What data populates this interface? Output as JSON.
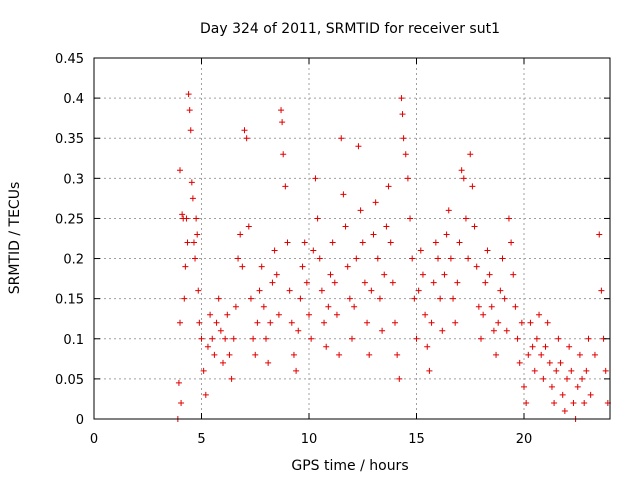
{
  "chart_data": {
    "type": "scatter",
    "title": "Day 324 of 2011, SRMTID for receiver sut1",
    "xlabel": "GPS time / hours",
    "ylabel": "SRMTID / TECUs",
    "xlim": [
      0,
      24
    ],
    "ylim": [
      0,
      0.45
    ],
    "xticks": [
      0,
      5,
      10,
      15,
      20
    ],
    "xtick_labels": [
      "0",
      "5",
      "10",
      "15",
      "20"
    ],
    "yticks": [
      0,
      0.05,
      0.1,
      0.15,
      0.2,
      0.25,
      0.3,
      0.35,
      0.4,
      0.45
    ],
    "ytick_labels": [
      "0",
      "0.05",
      "0.1",
      "0.15",
      "0.2",
      "0.25",
      "0.3",
      "0.35",
      "0.4",
      "0.45"
    ],
    "grid": true,
    "marker": "+",
    "color": "#e00000",
    "series": [
      {
        "name": "sut1",
        "points": [
          [
            3.9,
            0.0
          ],
          [
            3.95,
            0.045
          ],
          [
            4.0,
            0.12
          ],
          [
            4.0,
            0.31
          ],
          [
            4.05,
            0.02
          ],
          [
            4.1,
            0.255
          ],
          [
            4.15,
            0.25
          ],
          [
            4.2,
            0.15
          ],
          [
            4.25,
            0.19
          ],
          [
            4.3,
            0.25
          ],
          [
            4.35,
            0.22
          ],
          [
            4.4,
            0.405
          ],
          [
            4.45,
            0.385
          ],
          [
            4.5,
            0.36
          ],
          [
            4.55,
            0.295
          ],
          [
            4.6,
            0.275
          ],
          [
            4.65,
            0.22
          ],
          [
            4.7,
            0.2
          ],
          [
            4.75,
            0.25
          ],
          [
            4.8,
            0.23
          ],
          [
            4.85,
            0.16
          ],
          [
            4.9,
            0.12
          ],
          [
            5.0,
            0.1
          ],
          [
            5.1,
            0.06
          ],
          [
            5.2,
            0.03
          ],
          [
            5.3,
            0.09
          ],
          [
            5.4,
            0.13
          ],
          [
            5.5,
            0.1
          ],
          [
            5.6,
            0.08
          ],
          [
            5.7,
            0.12
          ],
          [
            5.8,
            0.15
          ],
          [
            5.9,
            0.11
          ],
          [
            6.0,
            0.07
          ],
          [
            6.1,
            0.1
          ],
          [
            6.2,
            0.13
          ],
          [
            6.3,
            0.08
          ],
          [
            6.4,
            0.05
          ],
          [
            6.5,
            0.1
          ],
          [
            6.6,
            0.14
          ],
          [
            6.7,
            0.2
          ],
          [
            6.8,
            0.23
          ],
          [
            6.9,
            0.19
          ],
          [
            7.0,
            0.36
          ],
          [
            7.1,
            0.35
          ],
          [
            7.2,
            0.24
          ],
          [
            7.3,
            0.15
          ],
          [
            7.4,
            0.1
          ],
          [
            7.5,
            0.08
          ],
          [
            7.6,
            0.12
          ],
          [
            7.7,
            0.16
          ],
          [
            7.8,
            0.19
          ],
          [
            7.9,
            0.14
          ],
          [
            8.0,
            0.1
          ],
          [
            8.1,
            0.07
          ],
          [
            8.2,
            0.12
          ],
          [
            8.3,
            0.17
          ],
          [
            8.4,
            0.21
          ],
          [
            8.5,
            0.18
          ],
          [
            8.6,
            0.13
          ],
          [
            8.7,
            0.385
          ],
          [
            8.75,
            0.37
          ],
          [
            8.8,
            0.33
          ],
          [
            8.9,
            0.29
          ],
          [
            9.0,
            0.22
          ],
          [
            9.1,
            0.16
          ],
          [
            9.2,
            0.12
          ],
          [
            9.3,
            0.08
          ],
          [
            9.4,
            0.06
          ],
          [
            9.5,
            0.11
          ],
          [
            9.6,
            0.15
          ],
          [
            9.7,
            0.19
          ],
          [
            9.8,
            0.22
          ],
          [
            9.9,
            0.17
          ],
          [
            10.0,
            0.13
          ],
          [
            10.1,
            0.1
          ],
          [
            10.2,
            0.21
          ],
          [
            10.3,
            0.3
          ],
          [
            10.4,
            0.25
          ],
          [
            10.5,
            0.2
          ],
          [
            10.6,
            0.16
          ],
          [
            10.7,
            0.12
          ],
          [
            10.8,
            0.09
          ],
          [
            10.9,
            0.14
          ],
          [
            11.0,
            0.18
          ],
          [
            11.1,
            0.22
          ],
          [
            11.2,
            0.17
          ],
          [
            11.3,
            0.13
          ],
          [
            11.4,
            0.08
          ],
          [
            11.5,
            0.35
          ],
          [
            11.6,
            0.28
          ],
          [
            11.7,
            0.24
          ],
          [
            11.8,
            0.19
          ],
          [
            11.9,
            0.15
          ],
          [
            12.0,
            0.1
          ],
          [
            12.1,
            0.14
          ],
          [
            12.2,
            0.2
          ],
          [
            12.3,
            0.34
          ],
          [
            12.4,
            0.26
          ],
          [
            12.5,
            0.22
          ],
          [
            12.6,
            0.17
          ],
          [
            12.7,
            0.12
          ],
          [
            12.8,
            0.08
          ],
          [
            12.9,
            0.16
          ],
          [
            13.0,
            0.23
          ],
          [
            13.1,
            0.27
          ],
          [
            13.2,
            0.2
          ],
          [
            13.3,
            0.15
          ],
          [
            13.4,
            0.11
          ],
          [
            13.5,
            0.18
          ],
          [
            13.6,
            0.24
          ],
          [
            13.7,
            0.29
          ],
          [
            13.8,
            0.22
          ],
          [
            13.9,
            0.17
          ],
          [
            14.0,
            0.12
          ],
          [
            14.1,
            0.08
          ],
          [
            14.2,
            0.05
          ],
          [
            14.3,
            0.4
          ],
          [
            14.35,
            0.38
          ],
          [
            14.4,
            0.35
          ],
          [
            14.5,
            0.33
          ],
          [
            14.6,
            0.3
          ],
          [
            14.7,
            0.25
          ],
          [
            14.8,
            0.2
          ],
          [
            14.9,
            0.15
          ],
          [
            15.0,
            0.1
          ],
          [
            15.1,
            0.16
          ],
          [
            15.2,
            0.21
          ],
          [
            15.3,
            0.18
          ],
          [
            15.4,
            0.13
          ],
          [
            15.5,
            0.09
          ],
          [
            15.6,
            0.06
          ],
          [
            15.7,
            0.12
          ],
          [
            15.8,
            0.17
          ],
          [
            15.9,
            0.22
          ],
          [
            16.0,
            0.2
          ],
          [
            16.1,
            0.15
          ],
          [
            16.2,
            0.11
          ],
          [
            16.3,
            0.18
          ],
          [
            16.4,
            0.23
          ],
          [
            16.5,
            0.26
          ],
          [
            16.6,
            0.2
          ],
          [
            16.7,
            0.15
          ],
          [
            16.8,
            0.12
          ],
          [
            16.9,
            0.17
          ],
          [
            17.0,
            0.22
          ],
          [
            17.1,
            0.31
          ],
          [
            17.2,
            0.3
          ],
          [
            17.3,
            0.25
          ],
          [
            17.4,
            0.2
          ],
          [
            17.5,
            0.33
          ],
          [
            17.6,
            0.29
          ],
          [
            17.7,
            0.24
          ],
          [
            17.8,
            0.19
          ],
          [
            17.9,
            0.14
          ],
          [
            18.0,
            0.1
          ],
          [
            18.1,
            0.13
          ],
          [
            18.2,
            0.17
          ],
          [
            18.3,
            0.21
          ],
          [
            18.4,
            0.18
          ],
          [
            18.5,
            0.14
          ],
          [
            18.6,
            0.11
          ],
          [
            18.7,
            0.08
          ],
          [
            18.8,
            0.12
          ],
          [
            18.9,
            0.16
          ],
          [
            19.0,
            0.2
          ],
          [
            19.1,
            0.15
          ],
          [
            19.2,
            0.11
          ],
          [
            19.3,
            0.25
          ],
          [
            19.4,
            0.22
          ],
          [
            19.5,
            0.18
          ],
          [
            19.6,
            0.14
          ],
          [
            19.7,
            0.1
          ],
          [
            19.8,
            0.07
          ],
          [
            19.9,
            0.12
          ],
          [
            20.0,
            0.04
          ],
          [
            20.1,
            0.02
          ],
          [
            20.2,
            0.08
          ],
          [
            20.3,
            0.12
          ],
          [
            20.4,
            0.09
          ],
          [
            20.5,
            0.06
          ],
          [
            20.6,
            0.1
          ],
          [
            20.7,
            0.13
          ],
          [
            20.8,
            0.08
          ],
          [
            20.9,
            0.05
          ],
          [
            21.0,
            0.09
          ],
          [
            21.1,
            0.12
          ],
          [
            21.2,
            0.07
          ],
          [
            21.3,
            0.04
          ],
          [
            21.4,
            0.02
          ],
          [
            21.5,
            0.06
          ],
          [
            21.6,
            0.1
          ],
          [
            21.7,
            0.07
          ],
          [
            21.8,
            0.03
          ],
          [
            21.9,
            0.01
          ],
          [
            22.0,
            0.05
          ],
          [
            22.1,
            0.09
          ],
          [
            22.2,
            0.06
          ],
          [
            22.3,
            0.02
          ],
          [
            22.4,
            0.0
          ],
          [
            22.5,
            0.04
          ],
          [
            22.6,
            0.08
          ],
          [
            22.7,
            0.05
          ],
          [
            22.8,
            0.02
          ],
          [
            22.9,
            0.06
          ],
          [
            23.0,
            0.1
          ],
          [
            23.1,
            0.03
          ],
          [
            23.3,
            0.08
          ],
          [
            23.5,
            0.23
          ],
          [
            23.6,
            0.16
          ],
          [
            23.7,
            0.1
          ],
          [
            23.8,
            0.06
          ],
          [
            23.9,
            0.02
          ]
        ]
      }
    ]
  }
}
